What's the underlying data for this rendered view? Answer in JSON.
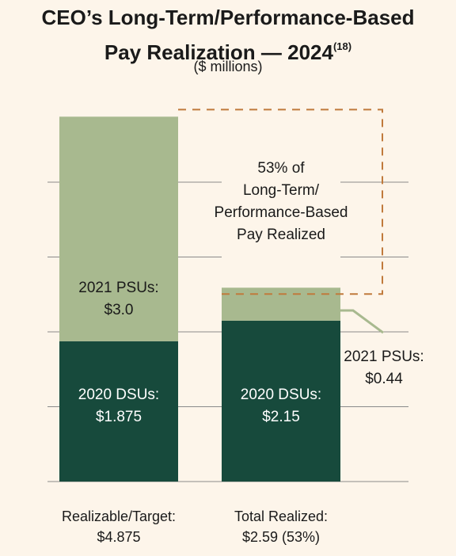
{
  "header": {
    "title_line1": "CEO’s Long-Term/Performance-Based",
    "title_line2": "Pay Realization — 2024",
    "footnote": "(18)",
    "subtitle": "($ millions)"
  },
  "chart_data": {
    "type": "bar",
    "stacked": true,
    "categories": [
      "Realizable/Target",
      "Total Realized"
    ],
    "series": [
      {
        "name": "2020 DSUs",
        "values": [
          1.875,
          2.15
        ],
        "color": "#174a3c"
      },
      {
        "name": "2021 PSUs",
        "values": [
          3.0,
          0.44
        ],
        "color": "#a8b98f"
      }
    ],
    "ylim": [
      0,
      5
    ],
    "grid": true,
    "bar_labels": {
      "target_psu_line1": "2021 PSUs:",
      "target_psu_line2": "$3.0",
      "target_dsu_line1": "2020 DSUs:",
      "target_dsu_line2": "$1.875",
      "realized_dsu_line1": "2020 DSUs:",
      "realized_dsu_line2": "$2.15",
      "realized_psu_line1": "2021 PSUs:",
      "realized_psu_line2": "$0.44"
    },
    "callout": {
      "line1": "53% of",
      "line2": "Long-Term/",
      "line3": "Performance-Based",
      "line4": "Pay Realized"
    },
    "totals": {
      "target_label": "Realizable/Target:",
      "target_value": "$4.875",
      "realized_label": "Total Realized:",
      "realized_value": "$2.59 (53%)"
    },
    "colors": {
      "dsu": "#174a3c",
      "psu": "#a8b98f",
      "callout": "#c07a3c",
      "grid": "#8a8a8a"
    }
  }
}
